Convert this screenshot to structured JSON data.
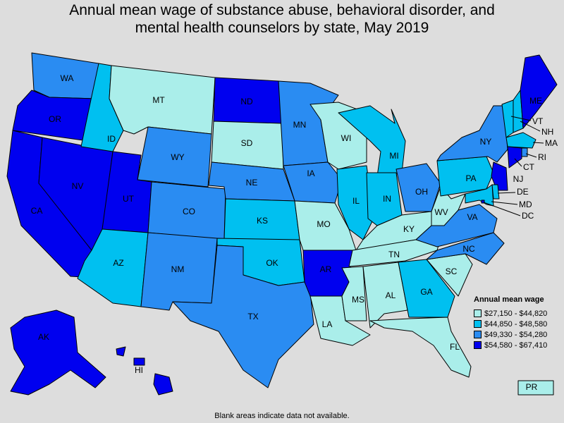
{
  "title": {
    "line1": "Annual mean wage of substance abuse, behavioral disorder, and",
    "line2": "mental health counselors by state, May 2019"
  },
  "legend": {
    "title": "Annual mean wage",
    "bins": [
      {
        "label": "$27,150 - $44,820",
        "color": "#aaeeea"
      },
      {
        "label": "$44,850 - $48,580",
        "color": "#00c0f0"
      },
      {
        "label": "$49,330 - $54,280",
        "color": "#2a8cf2"
      },
      {
        "label": "$54,580 - $67,410",
        "color": "#0000ef"
      }
    ]
  },
  "states": [
    {
      "code": "WA",
      "bin": 2
    },
    {
      "code": "OR",
      "bin": 3
    },
    {
      "code": "CA",
      "bin": 3
    },
    {
      "code": "NV",
      "bin": 3
    },
    {
      "code": "ID",
      "bin": 1
    },
    {
      "code": "MT",
      "bin": 0
    },
    {
      "code": "WY",
      "bin": 2
    },
    {
      "code": "UT",
      "bin": 3
    },
    {
      "code": "AZ",
      "bin": 1
    },
    {
      "code": "CO",
      "bin": 2
    },
    {
      "code": "NM",
      "bin": 2
    },
    {
      "code": "ND",
      "bin": 3
    },
    {
      "code": "SD",
      "bin": 0
    },
    {
      "code": "NE",
      "bin": 2
    },
    {
      "code": "KS",
      "bin": 1
    },
    {
      "code": "OK",
      "bin": 1
    },
    {
      "code": "TX",
      "bin": 2
    },
    {
      "code": "MN",
      "bin": 2
    },
    {
      "code": "IA",
      "bin": 2
    },
    {
      "code": "MO",
      "bin": 0
    },
    {
      "code": "AR",
      "bin": 3
    },
    {
      "code": "LA",
      "bin": 0
    },
    {
      "code": "WI",
      "bin": 0
    },
    {
      "code": "IL",
      "bin": 1
    },
    {
      "code": "MI",
      "bin": 1
    },
    {
      "code": "IN",
      "bin": 1
    },
    {
      "code": "OH",
      "bin": 2
    },
    {
      "code": "KY",
      "bin": 0
    },
    {
      "code": "TN",
      "bin": 0
    },
    {
      "code": "MS",
      "bin": 0
    },
    {
      "code": "AL",
      "bin": 0
    },
    {
      "code": "GA",
      "bin": 1
    },
    {
      "code": "FL",
      "bin": 0
    },
    {
      "code": "SC",
      "bin": 0
    },
    {
      "code": "NC",
      "bin": 2
    },
    {
      "code": "VA",
      "bin": 2
    },
    {
      "code": "WV",
      "bin": 0
    },
    {
      "code": "PA",
      "bin": 1
    },
    {
      "code": "NY",
      "bin": 2
    },
    {
      "code": "VT",
      "bin": 1
    },
    {
      "code": "NH",
      "bin": 1
    },
    {
      "code": "ME",
      "bin": 3
    },
    {
      "code": "MA",
      "bin": 1
    },
    {
      "code": "RI",
      "bin": 2
    },
    {
      "code": "CT",
      "bin": 3
    },
    {
      "code": "NJ",
      "bin": 3
    },
    {
      "code": "DE",
      "bin": 1
    },
    {
      "code": "MD",
      "bin": 1
    },
    {
      "code": "DC",
      "bin": 3
    },
    {
      "code": "AK",
      "bin": 3
    },
    {
      "code": "HI",
      "bin": 3
    },
    {
      "code": "PR",
      "bin": 0
    }
  ],
  "footnote": "Blank areas indicate data not available."
}
